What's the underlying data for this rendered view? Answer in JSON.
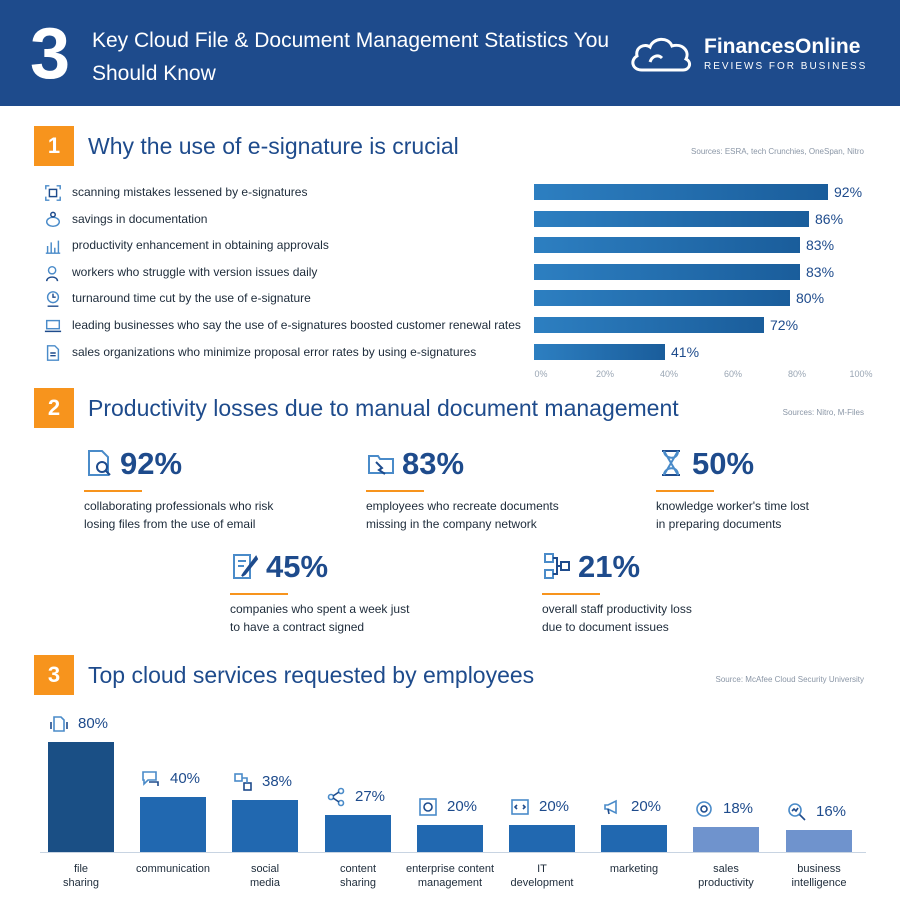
{
  "header": {
    "number": "3",
    "title": "Key Cloud File & Document Management Statistics You Should Know",
    "logo_name": "FinancesOnline",
    "logo_tagline": "REVIEWS FOR BUSINESS"
  },
  "colors": {
    "header_bg": "#1e4b8c",
    "accent": "#f7941d",
    "bar_dark": "#1a5d9b",
    "bar_light": "#2d7fc1",
    "text_blue": "#1e4b8c"
  },
  "section1": {
    "number": "1",
    "title": "Why the use of e-signature is crucial",
    "source": "Sources: ESRA, tech Crunchies, OneSpan, Nitro"
  },
  "section2": {
    "number": "2",
    "title": "Productivity losses due to manual document management",
    "source": "Sources: Nitro, M-Files",
    "stats": [
      {
        "value": "92%",
        "desc_line1": "collaborating professionals who risk",
        "desc_line2": "losing files from the use of email",
        "icon": "document-search-icon"
      },
      {
        "value": "83%",
        "desc_line1": "employees who recreate documents",
        "desc_line2": "missing in the company network",
        "icon": "folder-broken-icon"
      },
      {
        "value": "50%",
        "desc_line1": "knowledge worker's time lost",
        "desc_line2": "in preparing documents",
        "icon": "hourglass-icon"
      },
      {
        "value": "45%",
        "desc_line1": "companies who spent a week just",
        "desc_line2": "to have a contract signed",
        "icon": "contract-pen-icon"
      },
      {
        "value": "21%",
        "desc_line1": "overall staff productivity loss",
        "desc_line2": "due to document issues",
        "icon": "workflow-icon"
      }
    ]
  },
  "section3": {
    "number": "3",
    "title": "Top cloud services requested by employees",
    "source": "Source: McAfee Cloud Security University"
  },
  "chart_data": [
    {
      "type": "bar",
      "orientation": "horizontal",
      "categories": [
        "scanning mistakes lessened by e-signatures",
        "savings in documentation",
        "productivity enhancement in obtaining approvals",
        "workers who struggle with version issues daily",
        "turnaround time cut by the use of e-signature",
        "leading businesses who say the use of e-signatures boosted customer renewal rates",
        "sales organizations who minimize proposal error rates by using e-signatures"
      ],
      "values": [
        92,
        86,
        83,
        83,
        80,
        72,
        41
      ],
      "value_labels": [
        "92%",
        "86%",
        "83%",
        "83%",
        "80%",
        "72%",
        "41%"
      ],
      "icons": [
        "scan-icon",
        "piggy-bank-icon",
        "bar-chart-icon",
        "worker-icon",
        "clock-hand-icon",
        "laptop-icon",
        "document-icon"
      ],
      "xlim": [
        0,
        100
      ],
      "xticks": [
        "0%",
        "20%",
        "40%",
        "60%",
        "80%",
        "100%"
      ],
      "grid": false
    },
    {
      "type": "bar",
      "orientation": "vertical",
      "categories": [
        [
          "file",
          "sharing"
        ],
        [
          "communication",
          ""
        ],
        [
          "social",
          "media"
        ],
        [
          "content",
          "sharing"
        ],
        [
          "enterprise content",
          "management"
        ],
        [
          "IT",
          "development"
        ],
        [
          "marketing",
          ""
        ],
        [
          "sales",
          "productivity"
        ],
        [
          "business",
          "intelligence"
        ]
      ],
      "values": [
        80,
        40,
        38,
        27,
        20,
        20,
        20,
        18,
        16
      ],
      "value_labels": [
        "80%",
        "40%",
        "38%",
        "27%",
        "20%",
        "20%",
        "20%",
        "18%",
        "16%"
      ],
      "colors": [
        "#1a4f85",
        "#2168b0",
        "#2168b0",
        "#2168b0",
        "#2168b0",
        "#2168b0",
        "#2168b0",
        "#6f93cd",
        "#6f93cd"
      ],
      "icons": [
        "file-sharing-icon",
        "chat-icon",
        "social-icon",
        "share-icon",
        "gear-network-icon",
        "code-icon",
        "megaphone-icon",
        "target-icon",
        "magnifier-chart-icon"
      ],
      "ylim": [
        0,
        100
      ],
      "grid": false
    }
  ]
}
